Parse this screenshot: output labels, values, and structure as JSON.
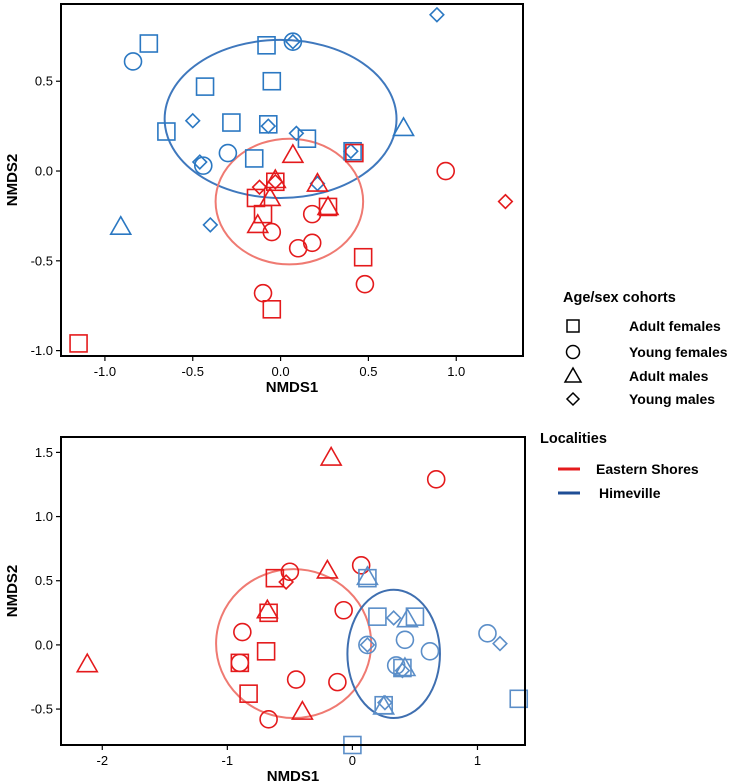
{
  "colors": {
    "eastern_shores": "#e41a1c",
    "eastern_ellipse": "#ef7a72",
    "himeville_top": "#2b78c2",
    "himeville_bottom": "#5b8ec8",
    "himeville_ellipse": "#3f6fb0",
    "legend_line_blue": "#1f4e96",
    "frame": "#000000"
  },
  "legend": {
    "cohorts_title": "Age/sex cohorts",
    "cohorts": [
      {
        "shape": "square",
        "label": "Adult females"
      },
      {
        "shape": "circle",
        "label": "Young females"
      },
      {
        "shape": "triangle",
        "label": "Adult males"
      },
      {
        "shape": "diamond",
        "label": "Young males"
      }
    ],
    "localities_title": "Localities",
    "localities": [
      {
        "label": "Eastern Shores",
        "color": "#e41a1c"
      },
      {
        "label": " Himeville",
        "color": "#1f4e96"
      }
    ]
  },
  "chart_data": [
    {
      "type": "scatter",
      "xlabel": "NMDS1",
      "ylabel": "NMDS2",
      "xlim": [
        -1.25,
        1.38
      ],
      "ylim": [
        -1.03,
        0.93
      ],
      "xticks": [
        -1.0,
        -0.5,
        0.0,
        0.5,
        1.0
      ],
      "xtick_labels": [
        "-1.0",
        "-0.5",
        "0.0",
        "0.5",
        "1.0"
      ],
      "yticks": [
        -1.0,
        -0.5,
        0.0,
        0.5
      ],
      "ytick_labels": [
        "-1.0",
        "-0.5",
        "0.0",
        "0.5"
      ],
      "ellipses": [
        {
          "locality": "Himeville",
          "cx": 0.0,
          "cy": 0.29,
          "rx": 0.66,
          "ry": 0.44,
          "color": "#3f78bd"
        },
        {
          "locality": "Eastern Shores",
          "cx": 0.05,
          "cy": -0.17,
          "rx": 0.42,
          "ry": 0.35,
          "color": "#ef7a72"
        }
      ],
      "series": [
        {
          "name": "Himeville",
          "color": "#2b78c2",
          "points": [
            [
              -0.75,
              0.71,
              "square"
            ],
            [
              -0.08,
              0.7,
              "square"
            ],
            [
              -0.43,
              0.47,
              "square"
            ],
            [
              -0.05,
              0.5,
              "square"
            ],
            [
              -0.65,
              0.22,
              "square"
            ],
            [
              -0.28,
              0.27,
              "square"
            ],
            [
              0.15,
              0.18,
              "square"
            ],
            [
              -0.07,
              0.26,
              "square"
            ],
            [
              -0.15,
              0.07,
              "square"
            ],
            [
              0.41,
              0.11,
              "square"
            ],
            [
              -0.84,
              0.61,
              "circle"
            ],
            [
              0.07,
              0.72,
              "circle"
            ],
            [
              -0.3,
              0.1,
              "circle"
            ],
            [
              -0.44,
              0.03,
              "circle"
            ],
            [
              0.7,
              0.24,
              "triangle"
            ],
            [
              -0.91,
              -0.31,
              "triangle"
            ],
            [
              0.89,
              0.87,
              "diamond"
            ],
            [
              -0.5,
              0.28,
              "diamond"
            ],
            [
              -0.07,
              0.25,
              "diamond"
            ],
            [
              0.09,
              0.21,
              "diamond"
            ],
            [
              -0.46,
              0.05,
              "diamond"
            ],
            [
              -0.4,
              -0.3,
              "diamond"
            ],
            [
              0.07,
              0.72,
              "diamond"
            ],
            [
              0.21,
              -0.07,
              "diamond"
            ],
            [
              0.4,
              0.11,
              "diamond"
            ]
          ]
        },
        {
          "name": "Eastern Shores",
          "color": "#e41a1c",
          "points": [
            [
              0.42,
              0.1,
              "square"
            ],
            [
              -0.14,
              -0.15,
              "square"
            ],
            [
              -0.1,
              -0.24,
              "square"
            ],
            [
              -0.03,
              -0.06,
              "square"
            ],
            [
              0.27,
              -0.2,
              "square"
            ],
            [
              0.47,
              -0.48,
              "square"
            ],
            [
              -0.05,
              -0.77,
              "square"
            ],
            [
              -1.15,
              -0.96,
              "square"
            ],
            [
              0.94,
              0.0,
              "circle"
            ],
            [
              0.18,
              -0.24,
              "circle"
            ],
            [
              -0.05,
              -0.34,
              "circle"
            ],
            [
              0.1,
              -0.43,
              "circle"
            ],
            [
              0.18,
              -0.4,
              "circle"
            ],
            [
              0.48,
              -0.63,
              "circle"
            ],
            [
              -0.1,
              -0.68,
              "circle"
            ],
            [
              0.07,
              0.09,
              "triangle"
            ],
            [
              -0.03,
              -0.05,
              "triangle"
            ],
            [
              -0.06,
              -0.15,
              "triangle"
            ],
            [
              0.21,
              -0.07,
              "triangle"
            ],
            [
              0.27,
              -0.2,
              "triangle"
            ],
            [
              -0.13,
              -0.3,
              "triangle"
            ],
            [
              1.28,
              -0.17,
              "diamond"
            ],
            [
              -0.12,
              -0.09,
              "diamond"
            ],
            [
              -0.03,
              -0.06,
              "diamond"
            ]
          ]
        }
      ]
    },
    {
      "type": "scatter",
      "xlabel": "NMDS1",
      "ylabel": "NMDS2",
      "xlim": [
        -2.33,
        1.38
      ],
      "ylim": [
        -0.78,
        1.62
      ],
      "xticks": [
        -2,
        -1,
        0,
        1
      ],
      "xtick_labels": [
        "-2",
        "-1",
        "0",
        "1"
      ],
      "yticks": [
        -0.5,
        0.0,
        0.5,
        1.0,
        1.5
      ],
      "ytick_labels": [
        "-0.5",
        "0.0",
        "0.5",
        "1.0",
        "1.5"
      ],
      "ellipses": [
        {
          "locality": "Eastern Shores",
          "cx": -0.47,
          "cy": 0.01,
          "rx": 0.62,
          "ry": 0.58,
          "color": "#ef7a72"
        },
        {
          "locality": "Himeville",
          "cx": 0.33,
          "cy": -0.07,
          "rx": 0.37,
          "ry": 0.5,
          "color": "#3f6fb0"
        }
      ],
      "series": [
        {
          "name": "Eastern Shores",
          "color": "#e41a1c",
          "points": [
            [
              -0.62,
              0.52,
              "square"
            ],
            [
              -0.67,
              0.25,
              "square"
            ],
            [
              -0.69,
              -0.05,
              "square"
            ],
            [
              -0.9,
              -0.14,
              "square"
            ],
            [
              -0.83,
              -0.38,
              "square"
            ],
            [
              0.67,
              1.29,
              "circle"
            ],
            [
              -0.5,
              0.57,
              "circle"
            ],
            [
              0.07,
              0.62,
              "circle"
            ],
            [
              -0.88,
              0.1,
              "circle"
            ],
            [
              -0.9,
              -0.14,
              "circle"
            ],
            [
              -0.07,
              0.27,
              "circle"
            ],
            [
              -0.45,
              -0.27,
              "circle"
            ],
            [
              -0.12,
              -0.29,
              "circle"
            ],
            [
              -0.67,
              -0.58,
              "circle"
            ],
            [
              -0.17,
              1.46,
              "triangle"
            ],
            [
              -0.2,
              0.58,
              "triangle"
            ],
            [
              -0.68,
              0.27,
              "triangle"
            ],
            [
              -2.12,
              -0.15,
              "triangle"
            ],
            [
              -0.4,
              -0.52,
              "triangle"
            ],
            [
              -0.53,
              0.49,
              "diamond"
            ]
          ]
        },
        {
          "name": "Himeville",
          "color": "#5b8ec8",
          "points": [
            [
              0.2,
              0.22,
              "square"
            ],
            [
              0.5,
              0.22,
              "square"
            ],
            [
              0.4,
              -0.18,
              "square"
            ],
            [
              0.25,
              -0.47,
              "square"
            ],
            [
              0.0,
              -0.78,
              "square"
            ],
            [
              1.33,
              -0.42,
              "square"
            ],
            [
              0.12,
              0.52,
              "square"
            ],
            [
              0.12,
              0.0,
              "circle"
            ],
            [
              0.42,
              0.04,
              "circle"
            ],
            [
              0.62,
              -0.05,
              "circle"
            ],
            [
              0.35,
              -0.16,
              "circle"
            ],
            [
              1.08,
              0.09,
              "circle"
            ],
            [
              0.12,
              0.53,
              "triangle"
            ],
            [
              0.44,
              0.2,
              "triangle"
            ],
            [
              0.42,
              -0.18,
              "triangle"
            ],
            [
              0.25,
              -0.48,
              "triangle"
            ],
            [
              0.12,
              0.0,
              "diamond"
            ],
            [
              0.33,
              0.21,
              "diamond"
            ],
            [
              1.18,
              0.01,
              "diamond"
            ],
            [
              0.4,
              -0.2,
              "diamond"
            ],
            [
              0.26,
              -0.45,
              "diamond"
            ]
          ]
        }
      ]
    }
  ]
}
